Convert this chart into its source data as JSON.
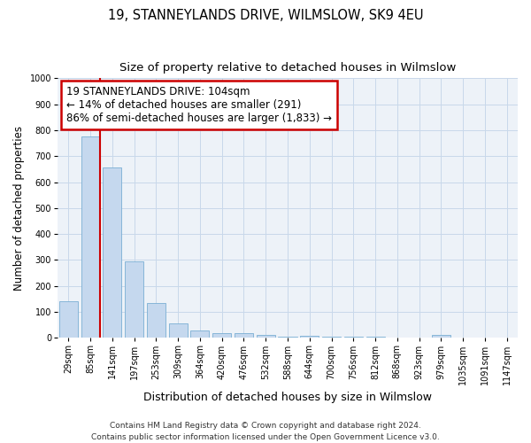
{
  "title": "19, STANNEYLANDS DRIVE, WILMSLOW, SK9 4EU",
  "subtitle": "Size of property relative to detached houses in Wilmslow",
  "xlabel": "Distribution of detached houses by size in Wilmslow",
  "ylabel": "Number of detached properties",
  "categories": [
    "29sqm",
    "85sqm",
    "141sqm",
    "197sqm",
    "253sqm",
    "309sqm",
    "364sqm",
    "420sqm",
    "476sqm",
    "532sqm",
    "588sqm",
    "644sqm",
    "700sqm",
    "756sqm",
    "812sqm",
    "868sqm",
    "923sqm",
    "979sqm",
    "1035sqm",
    "1091sqm",
    "1147sqm"
  ],
  "values": [
    140,
    775,
    655,
    295,
    135,
    55,
    30,
    18,
    17,
    11,
    5,
    8,
    5,
    5,
    6,
    0,
    0,
    10,
    0,
    0,
    0
  ],
  "bar_color": "#c5d8ee",
  "bar_edge_color": "#7aafd4",
  "vline_x_idx": 1,
  "vline_color": "#cc0000",
  "annotation_line1": "19 STANNEYLANDS DRIVE: 104sqm",
  "annotation_line2": "← 14% of detached houses are smaller (291)",
  "annotation_line3": "86% of semi-detached houses are larger (1,833) →",
  "annotation_box_facecolor": "#ffffff",
  "annotation_box_edgecolor": "#cc0000",
  "ylim": [
    0,
    1000
  ],
  "yticks": [
    0,
    100,
    200,
    300,
    400,
    500,
    600,
    700,
    800,
    900,
    1000
  ],
  "grid_color": "#c8d8ea",
  "background_color": "#edf2f8",
  "footer_line1": "Contains HM Land Registry data © Crown copyright and database right 2024.",
  "footer_line2": "Contains public sector information licensed under the Open Government Licence v3.0.",
  "title_fontsize": 10.5,
  "subtitle_fontsize": 9.5,
  "xlabel_fontsize": 9,
  "ylabel_fontsize": 8.5,
  "tick_fontsize": 7,
  "annotation_fontsize": 8.5,
  "footer_fontsize": 6.5
}
